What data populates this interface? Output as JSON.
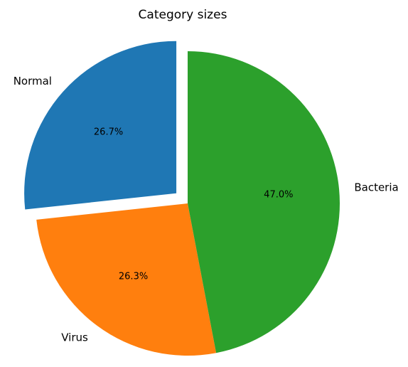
{
  "chart_data": {
    "type": "pie",
    "title": "Category sizes",
    "labels": [
      "Normal",
      "Virus",
      "Bacteria"
    ],
    "values": [
      26.7,
      26.3,
      47.0
    ],
    "pct_labels": [
      "26.7%",
      "26.3%",
      "47.0%"
    ],
    "colors": [
      "#1f77b4",
      "#ff7f0e",
      "#2ca02c"
    ],
    "explode": [
      0.1,
      0,
      0
    ],
    "start_angle_deg": 90,
    "direction": "counterclockwise"
  }
}
